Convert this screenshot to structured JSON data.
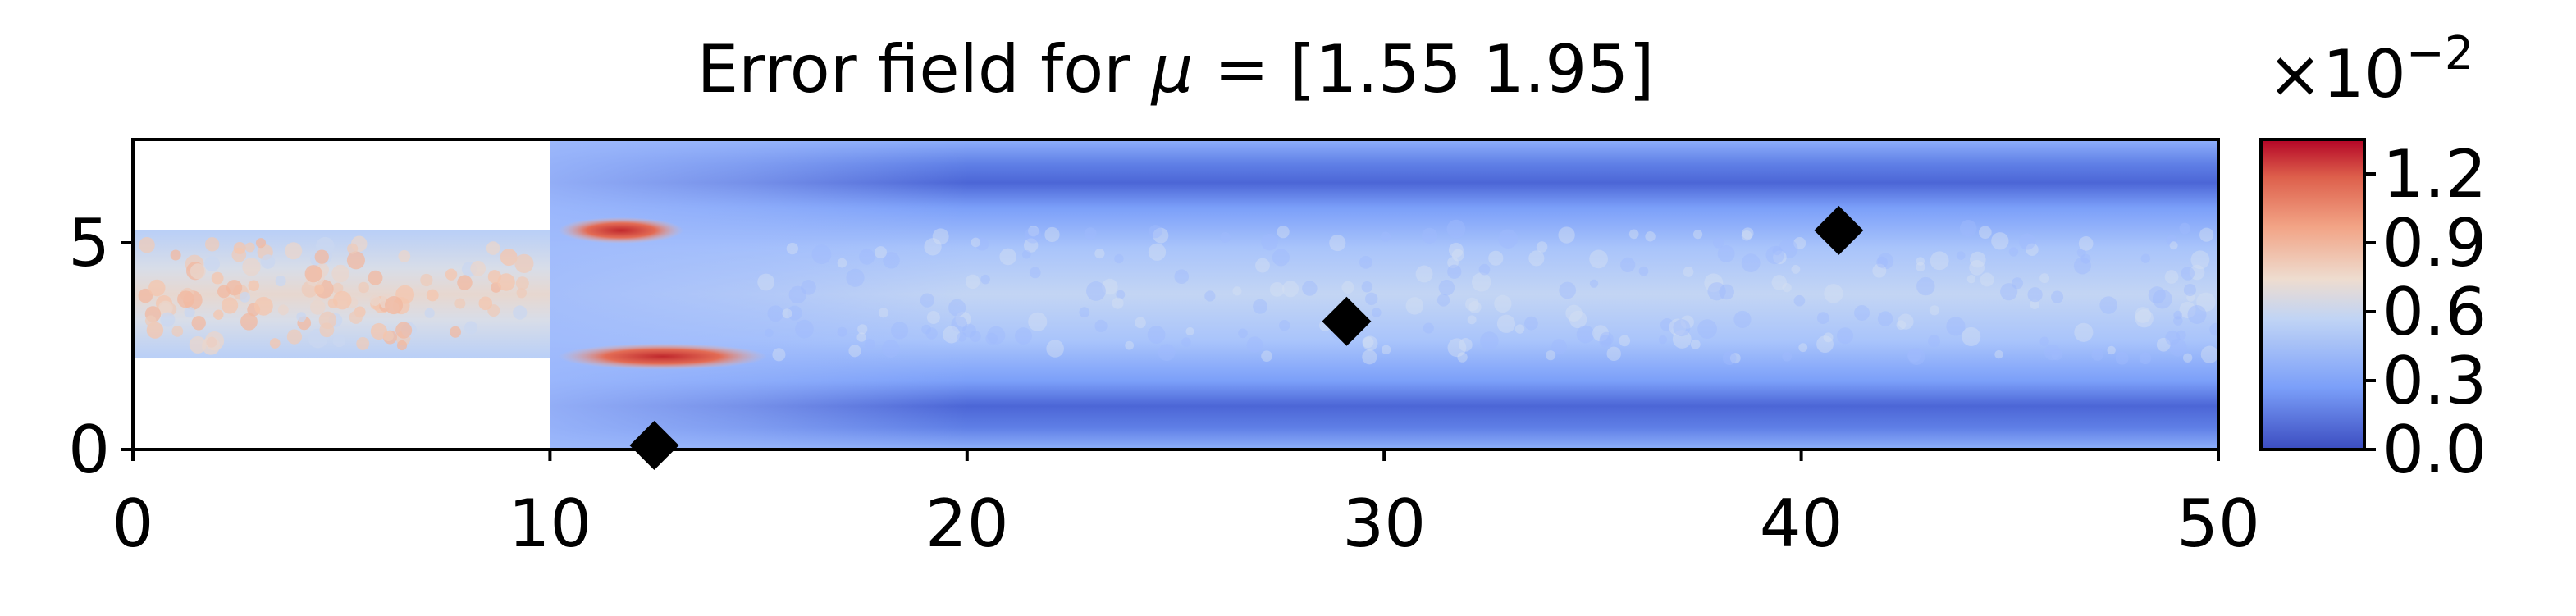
{
  "chart_data": {
    "type": "heatmap",
    "title_prefix": "Error field for ",
    "title_symbol": "μ",
    "title_suffix": " = [1.55 1.95]",
    "xlabel": "",
    "ylabel": "",
    "xlim": [
      0,
      50
    ],
    "ylim": [
      0,
      7.5
    ],
    "xticks": [
      0,
      10,
      20,
      30,
      40,
      50
    ],
    "yticks": [
      0,
      5
    ],
    "domain": {
      "inlet_channel": {
        "x": [
          0,
          10
        ],
        "y": [
          2.2,
          5.3
        ]
      },
      "main_channel": {
        "x": [
          10,
          50
        ],
        "y": [
          0,
          7.5
        ]
      }
    },
    "field_features": [
      {
        "description": "high error jet streak",
        "x": [
          10.2,
          15.2
        ],
        "y": 2.25,
        "value": 1.3
      },
      {
        "description": "high error jet streak",
        "x": [
          10.2,
          13.2
        ],
        "y": 5.3,
        "value": 1.2
      },
      {
        "description": "inlet speckle",
        "x": [
          0,
          10
        ],
        "y": 3.75,
        "value": 0.8
      },
      {
        "description": "centerline band",
        "x": [
          15,
          50
        ],
        "y": 3.75,
        "value": 0.5
      },
      {
        "description": "low band",
        "x": [
          17,
          50
        ],
        "y": 6.5,
        "value": 0.05
      },
      {
        "description": "low band",
        "x": [
          17,
          50
        ],
        "y": 1.0,
        "value": 0.05
      }
    ],
    "markers": [
      {
        "x": 12.5,
        "y": 0.1
      },
      {
        "x": 29.1,
        "y": 3.1
      },
      {
        "x": 40.9,
        "y": 5.3
      }
    ],
    "colorbar": {
      "multiplier_base": "×10",
      "multiplier_exponent": "−2",
      "ticks": [
        "0.0",
        "0.3",
        "0.6",
        "0.9",
        "1.2"
      ],
      "tick_values": [
        0.0,
        0.3,
        0.6,
        0.9,
        1.2
      ],
      "range": [
        0.0,
        1.35
      ],
      "colormap": "coolwarm",
      "colors": [
        "#3b4cc0",
        "#7b9ff9",
        "#c0d4f5",
        "#f2cbb7",
        "#ee8468",
        "#b40426"
      ]
    },
    "marker_color": "#000000"
  }
}
